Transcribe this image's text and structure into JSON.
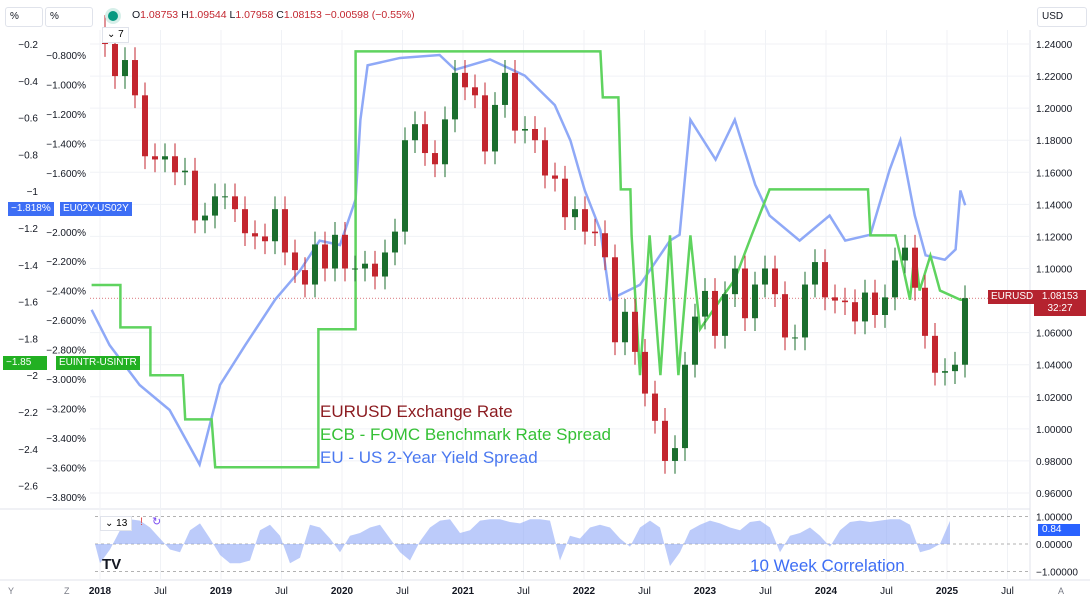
{
  "toolbar": {
    "left_scale_1": "%",
    "left_scale_2": "%",
    "currency": "USD",
    "symbol_dot_color": "#089981"
  },
  "ohlc": {
    "o_label": "O",
    "o": "1.08753",
    "h_label": "H",
    "h": "1.09544",
    "l_label": "L",
    "l": "1.07958",
    "c_label": "C",
    "c": "1.08153",
    "change": "−0.00598 (−0.55%)"
  },
  "legend": {
    "collapsed_count": "7",
    "pane2_count": "13"
  },
  "badges": {
    "eu_yield_value": "−1.818%",
    "eu_yield_name": "EU02Y-US02Y",
    "rate_value": "−1.85",
    "rate_name": "EUINTR-USINTR",
    "eurusd_name": "EURUSD",
    "eurusd_value": "1.08153",
    "countdown": "32:27",
    "corr_value": "0.84"
  },
  "annotations": {
    "eurusd": "EURUSD Exchange Rate",
    "rate_spread": "ECB - FOMC Benchmark Rate Spread",
    "yield_spread": "EU - US 2-Year Yield Spread",
    "correlation": "10 Week Correlation"
  },
  "corner": {
    "y": "Y",
    "z": "Z",
    "a": "A"
  },
  "chart_data": [
    {
      "type": "candlestick",
      "series_name": "EURUSD",
      "color_up": "#1b6e2e",
      "color_down": "#c3262f",
      "start": "2018-01",
      "interval": "month",
      "right_axis": {
        "ticks": [
          "1.24000",
          "1.22000",
          "1.20000",
          "1.18000",
          "1.16000",
          "1.14000",
          "1.12000",
          "1.10000",
          "1.06000",
          "1.04000",
          "1.02000",
          "1.00000",
          "0.98000",
          "0.96000"
        ],
        "range": [
          0.95,
          1.25
        ]
      },
      "closes": [
        1.24,
        1.22,
        1.23,
        1.208,
        1.17,
        1.168,
        1.17,
        1.16,
        1.161,
        1.13,
        1.133,
        1.145,
        1.145,
        1.137,
        1.122,
        1.12,
        1.117,
        1.137,
        1.11,
        1.099,
        1.09,
        1.115,
        1.1,
        1.121,
        1.1,
        1.1,
        1.103,
        1.095,
        1.11,
        1.123,
        1.18,
        1.19,
        1.172,
        1.165,
        1.193,
        1.222,
        1.213,
        1.208,
        1.173,
        1.202,
        1.222,
        1.186,
        1.187,
        1.18,
        1.158,
        1.156,
        1.132,
        1.137,
        1.123,
        1.122,
        1.107,
        1.054,
        1.073,
        1.048,
        1.022,
        1.005,
        0.98,
        0.988,
        1.04,
        1.07,
        1.086,
        1.058,
        1.084,
        1.1,
        1.069,
        1.09,
        1.1,
        1.084,
        1.057,
        1.057,
        1.09,
        1.104,
        1.082,
        1.08,
        1.079,
        1.067,
        1.085,
        1.071,
        1.082,
        1.105,
        1.113,
        1.088,
        1.058,
        1.035,
        1.036,
        1.04,
        1.0815
      ]
    },
    {
      "type": "line",
      "series_name": "EUINTR-USINTR",
      "color": "#5fd35f",
      "axis": "left-outer",
      "axis_ticks": [
        "-0.2",
        "-0.4",
        "-0.6",
        "-0.8",
        "-1",
        "-1.2",
        "-1.4",
        "-1.6",
        "-1.8",
        "-2",
        "-2.2",
        "-2.4",
        "-2.6"
      ],
      "points": [
        [
          2017.93,
          -1.51
        ],
        [
          2018.17,
          -1.51
        ],
        [
          2018.17,
          -1.74
        ],
        [
          2018.42,
          -1.74
        ],
        [
          2018.42,
          -2.0
        ],
        [
          2018.69,
          -2.0
        ],
        [
          2018.71,
          -2.24
        ],
        [
          2018.93,
          -2.24
        ],
        [
          2018.96,
          -2.5
        ],
        [
          2019.82,
          -2.5
        ],
        [
          2019.82,
          -1.75
        ],
        [
          2020.13,
          -1.75
        ],
        [
          2020.13,
          -0.24
        ],
        [
          2022.17,
          -0.24
        ],
        [
          2022.19,
          -0.49
        ],
        [
          2022.32,
          -0.49
        ],
        [
          2022.34,
          -0.99
        ],
        [
          2022.42,
          -0.99
        ],
        [
          2022.43,
          -1.24
        ],
        [
          2022.5,
          -2.0
        ],
        [
          2022.58,
          -1.24
        ],
        [
          2022.67,
          -2.0
        ],
        [
          2022.75,
          -1.24
        ],
        [
          2022.82,
          -2.0
        ],
        [
          2022.92,
          -1.24
        ],
        [
          2023.0,
          -1.75
        ],
        [
          2023.17,
          -1.59
        ],
        [
          2023.29,
          -1.48
        ],
        [
          2023.43,
          -1.24
        ],
        [
          2023.58,
          -0.99
        ],
        [
          2024.4,
          -0.99
        ],
        [
          2024.42,
          -1.24
        ],
        [
          2024.63,
          -1.24
        ],
        [
          2024.67,
          -1.35
        ],
        [
          2024.75,
          -1.59
        ],
        [
          2024.79,
          -1.32
        ],
        [
          2024.83,
          -1.54
        ],
        [
          2024.92,
          -1.35
        ],
        [
          2025.0,
          -1.54
        ],
        [
          2025.17,
          -1.59
        ],
        [
          2025.19,
          -1.59
        ]
      ]
    },
    {
      "type": "line",
      "series_name": "EU02Y-US02Y",
      "color": "#8fa9f7",
      "axis": "left-inner",
      "axis_ticks": [
        "-0.800%",
        "-1.000%",
        "-1.200%",
        "-1.400%",
        "-1.600%",
        "-2.000%",
        "-2.200%",
        "-2.400%",
        "-2.600%",
        "-2.800%",
        "-3.000%",
        "-3.200%",
        "-3.400%",
        "-3.600%",
        "-3.800%"
      ],
      "points": [
        [
          2017.93,
          -2.53
        ],
        [
          2018.08,
          -2.77
        ],
        [
          2018.33,
          -3.04
        ],
        [
          2018.58,
          -3.21
        ],
        [
          2018.83,
          -3.58
        ],
        [
          2019.0,
          -3.04
        ],
        [
          2019.21,
          -2.77
        ],
        [
          2019.46,
          -2.46
        ],
        [
          2019.67,
          -2.26
        ],
        [
          2019.83,
          -2.06
        ],
        [
          2020.0,
          -2.09
        ],
        [
          2020.13,
          -1.78
        ],
        [
          2020.17,
          -1.24
        ],
        [
          2020.23,
          -0.87
        ],
        [
          2020.5,
          -0.82
        ],
        [
          2020.83,
          -0.8
        ],
        [
          2020.96,
          -0.9
        ],
        [
          2021.25,
          -0.83
        ],
        [
          2021.54,
          -0.94
        ],
        [
          2021.79,
          -1.14
        ],
        [
          2021.92,
          -1.38
        ],
        [
          2022.04,
          -1.72
        ],
        [
          2022.17,
          -1.99
        ],
        [
          2022.25,
          -2.46
        ],
        [
          2022.5,
          -2.36
        ],
        [
          2022.75,
          -2.06
        ],
        [
          2022.83,
          -2.02
        ],
        [
          2022.92,
          -1.24
        ],
        [
          2023.13,
          -1.51
        ],
        [
          2023.29,
          -1.24
        ],
        [
          2023.46,
          -1.68
        ],
        [
          2023.58,
          -1.89
        ],
        [
          2023.83,
          -2.06
        ],
        [
          2024.08,
          -1.89
        ],
        [
          2024.21,
          -2.06
        ],
        [
          2024.42,
          -2.02
        ],
        [
          2024.58,
          -1.58
        ],
        [
          2024.67,
          -1.38
        ],
        [
          2024.79,
          -1.89
        ],
        [
          2024.88,
          -2.16
        ],
        [
          2025.04,
          -2.19
        ],
        [
          2025.13,
          -2.12
        ],
        [
          2025.17,
          -1.72
        ],
        [
          2025.21,
          -1.82
        ]
      ]
    },
    {
      "type": "area",
      "series_name": "Correlation",
      "color": "#8fa9f7",
      "start": "2018-01",
      "interval": "month",
      "axis_ticks": [
        "1.00000",
        "0.00000",
        "-1.00000"
      ],
      "range": [
        -1,
        1
      ],
      "values": [
        -0.7,
        -0.2,
        0.5,
        0.9,
        0.85,
        0.6,
        0.2,
        -0.2,
        -0.3,
        0.5,
        0.75,
        0.2,
        -0.4,
        -0.7,
        -0.7,
        -0.6,
        0.5,
        0.7,
        0.3,
        -0.7,
        -0.5,
        0.7,
        0.6,
        0.2,
        -0.3,
        0.3,
        0.4,
        0.6,
        0.7,
        0.2,
        -0.3,
        -0.6,
        0.1,
        0.6,
        0.85,
        0.9,
        0.4,
        0.5,
        0.85,
        0.9,
        0.9,
        0.8,
        0.75,
        0.9,
        0.9,
        0.85,
        -0.6,
        0.3,
        0.2,
        0.6,
        0.7,
        0.6,
        0.2,
        -0.1,
        0.6,
        0.85,
        0.6,
        -0.8,
        -0.3,
        0.5,
        0.7,
        0.85,
        0.75,
        0.6,
        0.5,
        0.8,
        0.85,
        0.6,
        -0.3,
        0.3,
        0.4,
        0.6,
        0.3,
        -0.1,
        0.5,
        0.8,
        0.85,
        0.8,
        0.85,
        0.9,
        0.9,
        0.7,
        -0.3,
        -0.2,
        0.0,
        0.84
      ]
    },
    {
      "type": "axis",
      "x_ticks": [
        "2018",
        "Jul",
        "2019",
        "Jul",
        "2020",
        "Jul",
        "2021",
        "Jul",
        "2022",
        "Jul",
        "2023",
        "Jul",
        "2024",
        "Jul",
        "2025",
        "Jul"
      ]
    }
  ]
}
